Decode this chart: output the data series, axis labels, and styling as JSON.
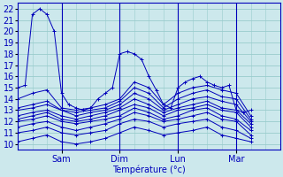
{
  "xlabel": "Température (°c)",
  "xlim": [
    0,
    108
  ],
  "ylim": [
    9.5,
    22.5
  ],
  "yticks": [
    10,
    11,
    12,
    13,
    14,
    15,
    16,
    17,
    18,
    19,
    20,
    21,
    22
  ],
  "xtick_positions": [
    18,
    42,
    66,
    90
  ],
  "xtick_labels": [
    "Sam",
    "Dim",
    "Lun",
    "Mar"
  ],
  "bg_color": "#cce8ec",
  "grid_color": "#99cccc",
  "line_color": "#0000bb",
  "series": [
    [
      0,
      15.0,
      3,
      15.2,
      6,
      21.5,
      9,
      22.0,
      12,
      21.5,
      15,
      20.0,
      18,
      14.5,
      21,
      13.5,
      24,
      13.2,
      27,
      13.0,
      30,
      13.2,
      33,
      14.0,
      36,
      14.5,
      39,
      15.0,
      42,
      18.0,
      45,
      18.2,
      48,
      18.0,
      51,
      17.5,
      54,
      16.0,
      57,
      14.8,
      60,
      13.5,
      63,
      13.2,
      66,
      15.0,
      69,
      15.5,
      72,
      15.8,
      75,
      16.0,
      78,
      15.5,
      81,
      15.2,
      84,
      15.0,
      87,
      15.2,
      90,
      13.0,
      93,
      12.8,
      96,
      13.0
    ],
    [
      0,
      14.0,
      6,
      14.5,
      12,
      14.8,
      18,
      13.2,
      24,
      13.0,
      30,
      13.2,
      36,
      13.5,
      42,
      14.0,
      48,
      15.5,
      54,
      15.0,
      60,
      13.5,
      66,
      14.5,
      72,
      15.0,
      78,
      15.2,
      84,
      14.8,
      90,
      14.5,
      96,
      12.5
    ],
    [
      0,
      13.2,
      6,
      13.5,
      12,
      13.8,
      18,
      13.0,
      24,
      12.8,
      30,
      13.0,
      36,
      13.2,
      42,
      13.8,
      48,
      15.0,
      54,
      14.5,
      60,
      13.2,
      66,
      14.0,
      72,
      14.5,
      78,
      14.8,
      84,
      14.2,
      90,
      14.0,
      96,
      12.2
    ],
    [
      0,
      13.0,
      6,
      13.2,
      12,
      13.5,
      18,
      13.0,
      24,
      12.5,
      30,
      12.8,
      36,
      13.0,
      42,
      13.5,
      48,
      14.5,
      54,
      14.0,
      60,
      13.0,
      66,
      13.5,
      72,
      14.0,
      78,
      14.2,
      84,
      13.8,
      90,
      13.5,
      96,
      12.0
    ],
    [
      0,
      12.5,
      6,
      12.8,
      12,
      13.0,
      18,
      12.5,
      24,
      12.2,
      30,
      12.5,
      36,
      12.8,
      42,
      13.2,
      48,
      14.0,
      54,
      13.5,
      60,
      12.8,
      66,
      13.2,
      72,
      13.5,
      78,
      13.8,
      84,
      13.2,
      90,
      13.0,
      96,
      11.8
    ],
    [
      0,
      12.2,
      6,
      12.5,
      12,
      12.8,
      18,
      12.2,
      24,
      12.0,
      30,
      12.2,
      36,
      12.5,
      42,
      13.0,
      48,
      13.5,
      54,
      13.2,
      60,
      12.5,
      66,
      13.0,
      72,
      13.2,
      78,
      13.5,
      84,
      13.0,
      90,
      12.8,
      96,
      11.5
    ],
    [
      0,
      12.0,
      6,
      12.2,
      12,
      12.5,
      18,
      12.0,
      24,
      11.8,
      30,
      12.0,
      36,
      12.2,
      42,
      12.5,
      48,
      13.2,
      54,
      12.8,
      60,
      12.2,
      66,
      12.5,
      72,
      13.0,
      78,
      13.2,
      84,
      12.5,
      90,
      12.2,
      96,
      11.2
    ],
    [
      0,
      11.5,
      6,
      11.8,
      12,
      12.0,
      18,
      11.5,
      24,
      11.2,
      30,
      11.5,
      36,
      11.8,
      42,
      12.2,
      48,
      12.8,
      54,
      12.5,
      60,
      12.0,
      66,
      12.2,
      72,
      12.5,
      78,
      12.8,
      84,
      12.2,
      90,
      12.0,
      96,
      10.8
    ],
    [
      0,
      11.0,
      6,
      11.2,
      12,
      11.5,
      18,
      11.0,
      24,
      10.8,
      30,
      11.0,
      36,
      11.2,
      42,
      11.8,
      48,
      12.2,
      54,
      12.0,
      60,
      11.5,
      66,
      11.8,
      72,
      12.0,
      78,
      12.2,
      84,
      11.5,
      90,
      11.2,
      96,
      10.5
    ],
    [
      0,
      10.2,
      6,
      10.5,
      12,
      10.8,
      18,
      10.2,
      24,
      10.0,
      30,
      10.2,
      36,
      10.5,
      42,
      11.0,
      48,
      11.5,
      54,
      11.2,
      60,
      10.8,
      66,
      11.0,
      72,
      11.2,
      78,
      11.5,
      84,
      10.8,
      90,
      10.5,
      96,
      10.2
    ]
  ]
}
